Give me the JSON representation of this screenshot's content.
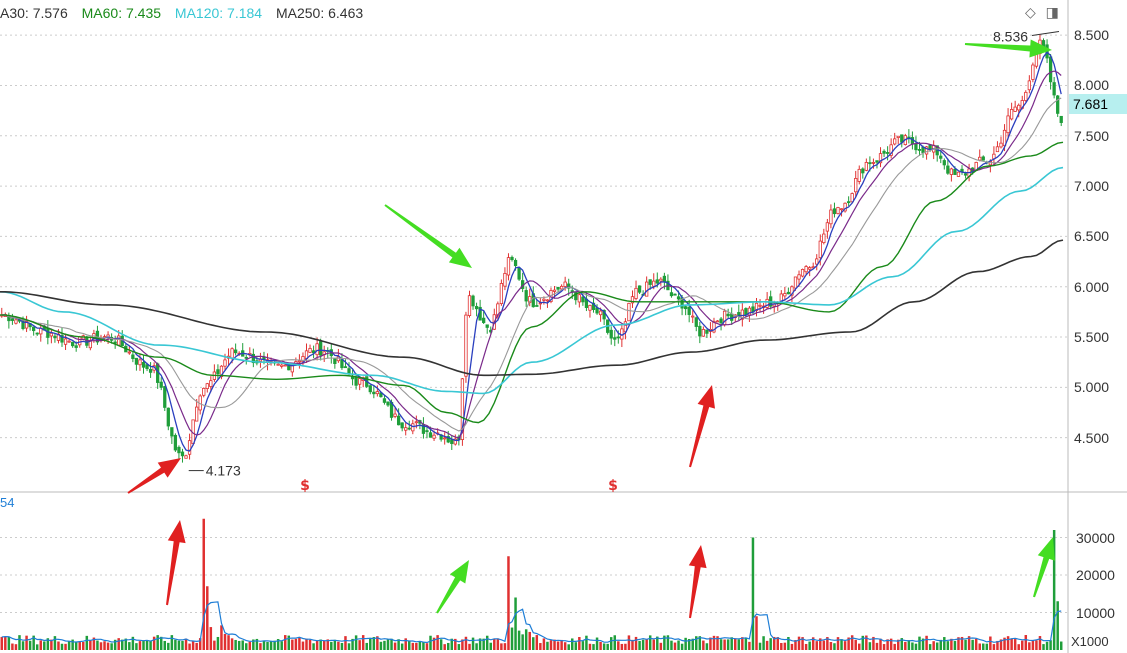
{
  "legend": {
    "ma30": "A30: 7.576",
    "ma60": "MA60: 7.435",
    "ma120": "MA120: 7.184",
    "ma250": "MA250: 6.463"
  },
  "volume_legend": "54",
  "current_price": "7.681",
  "unit_label": "X1000",
  "colors": {
    "up": "#e03030",
    "down": "#1f9e3a",
    "ma30": "#1a8a1a",
    "ma60": "#1a8a1a",
    "ma120": "#39c7d4",
    "ma250": "#333333",
    "short1": "#2a3fbf",
    "short2": "#7a2a8a",
    "short3": "#999999",
    "arrow_red": "#e02020",
    "arrow_green": "#44dd22",
    "vol_line": "#1f7ed6"
  },
  "corner_icons": [
    "diamond-icon",
    "panel-toggle-icon"
  ],
  "chart_data": {
    "type": "line",
    "price_axis": {
      "ticks": [
        "8.500",
        "8.000",
        "7.500",
        "7.000",
        "6.500",
        "6.000",
        "5.500",
        "5.000",
        "4.500"
      ],
      "ylim": [
        4.0,
        8.75
      ]
    },
    "volume_axis": {
      "ticks": [
        "30000",
        "20000",
        "10000"
      ],
      "ylim": [
        0,
        40000
      ]
    },
    "annotations": {
      "low": {
        "label": "4.173",
        "value": 4.173
      },
      "high": {
        "label": "8.536",
        "value": 8.536
      }
    },
    "markers": [
      "$",
      "$"
    ],
    "ma250_anchors": [
      [
        0,
        5.95
      ],
      [
        0.1,
        5.82
      ],
      [
        0.25,
        5.55
      ],
      [
        0.38,
        5.3
      ],
      [
        0.455,
        5.12
      ],
      [
        0.5,
        5.13
      ],
      [
        0.58,
        5.22
      ],
      [
        0.65,
        5.35
      ],
      [
        0.72,
        5.47
      ],
      [
        0.8,
        5.55
      ],
      [
        0.86,
        5.85
      ],
      [
        0.92,
        6.15
      ],
      [
        0.97,
        6.3
      ],
      [
        1.0,
        6.463
      ]
    ],
    "ma120_anchors": [
      [
        0,
        5.95
      ],
      [
        0.06,
        5.75
      ],
      [
        0.15,
        5.42
      ],
      [
        0.25,
        5.25
      ],
      [
        0.35,
        5.12
      ],
      [
        0.42,
        4.96
      ],
      [
        0.455,
        4.94
      ],
      [
        0.5,
        5.25
      ],
      [
        0.58,
        5.62
      ],
      [
        0.65,
        5.82
      ],
      [
        0.72,
        5.85
      ],
      [
        0.78,
        5.82
      ],
      [
        0.84,
        6.1
      ],
      [
        0.9,
        6.55
      ],
      [
        0.96,
        6.95
      ],
      [
        1.0,
        7.184
      ]
    ],
    "ma60_anchors": [
      [
        0,
        5.72
      ],
      [
        0.08,
        5.5
      ],
      [
        0.15,
        5.3
      ],
      [
        0.2,
        5.12
      ],
      [
        0.26,
        5.08
      ],
      [
        0.32,
        5.12
      ],
      [
        0.38,
        5.02
      ],
      [
        0.42,
        4.75
      ],
      [
        0.45,
        4.65
      ],
      [
        0.5,
        5.6
      ],
      [
        0.55,
        5.95
      ],
      [
        0.6,
        5.85
      ],
      [
        0.66,
        5.85
      ],
      [
        0.72,
        5.85
      ],
      [
        0.78,
        5.75
      ],
      [
        0.83,
        6.2
      ],
      [
        0.88,
        6.85
      ],
      [
        0.93,
        7.2
      ],
      [
        0.97,
        7.3
      ],
      [
        1.0,
        7.435
      ]
    ],
    "close_anchors": [
      [
        0,
        5.72
      ],
      [
        0.04,
        5.55
      ],
      [
        0.07,
        5.45
      ],
      [
        0.1,
        5.5
      ],
      [
        0.14,
        5.2
      ],
      [
        0.17,
        4.3
      ],
      [
        0.19,
        5.0
      ],
      [
        0.22,
        5.35
      ],
      [
        0.26,
        5.2
      ],
      [
        0.3,
        5.38
      ],
      [
        0.34,
        5.05
      ],
      [
        0.38,
        4.65
      ],
      [
        0.41,
        4.55
      ],
      [
        0.43,
        4.45
      ],
      [
        0.44,
        5.9
      ],
      [
        0.46,
        5.6
      ],
      [
        0.48,
        6.25
      ],
      [
        0.5,
        5.85
      ],
      [
        0.53,
        6.0
      ],
      [
        0.56,
        5.75
      ],
      [
        0.58,
        5.45
      ],
      [
        0.6,
        5.95
      ],
      [
        0.62,
        6.05
      ],
      [
        0.64,
        5.85
      ],
      [
        0.66,
        5.55
      ],
      [
        0.68,
        5.7
      ],
      [
        0.7,
        5.75
      ],
      [
        0.73,
        5.85
      ],
      [
        0.76,
        6.2
      ],
      [
        0.79,
        6.8
      ],
      [
        0.82,
        7.25
      ],
      [
        0.85,
        7.45
      ],
      [
        0.88,
        7.35
      ],
      [
        0.9,
        7.1
      ],
      [
        0.93,
        7.25
      ],
      [
        0.96,
        7.8
      ],
      [
        0.98,
        8.4
      ],
      [
        1.0,
        7.681
      ]
    ]
  }
}
